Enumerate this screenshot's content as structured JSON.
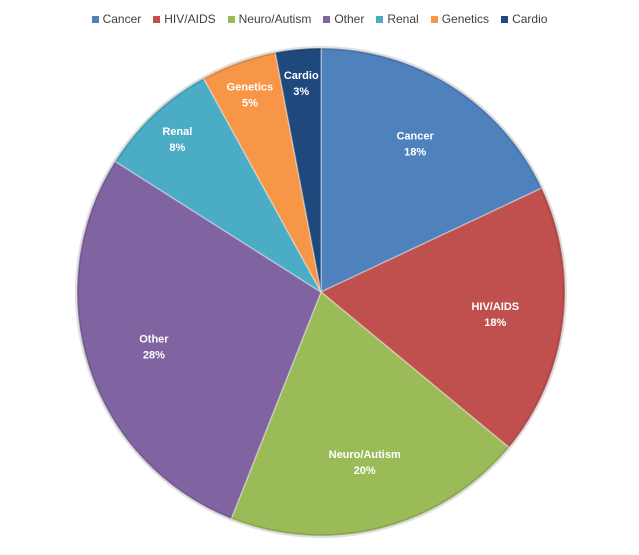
{
  "chart_data": {
    "type": "pie",
    "title": "",
    "legend_position": "top",
    "slices": [
      {
        "label": "Cancer",
        "value": 18,
        "value_label": "18%",
        "color": "#4F81BD"
      },
      {
        "label": "HIV/AIDS",
        "value": 18,
        "value_label": "18%",
        "color": "#C0504D"
      },
      {
        "label": "Neuro/Autism",
        "value": 20,
        "value_label": "20%",
        "color": "#9BBB59"
      },
      {
        "label": "Other",
        "value": 28,
        "value_label": "28%",
        "color": "#8064A2"
      },
      {
        "label": "Renal",
        "value": 8,
        "value_label": "8%",
        "color": "#4BACC6"
      },
      {
        "label": "Genetics",
        "value": 5,
        "value_label": "5%",
        "color": "#F79646"
      },
      {
        "label": "Cardio",
        "value": 3,
        "value_label": "3%",
        "color": "#1F497D"
      }
    ]
  }
}
